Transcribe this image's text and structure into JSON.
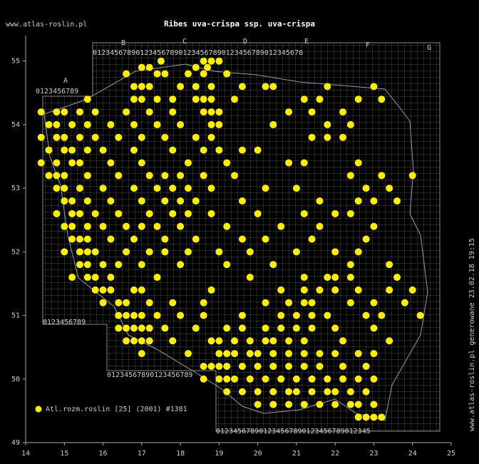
{
  "chart_data": {
    "type": "scatter",
    "title": "Ribes uva-crispa ssp. uva-crispa",
    "site": "www.atlas-roslin.pl",
    "side_note": "www.atlas-roslin.pl generowane 23.02.18 19:15",
    "legend": "Atl.rozm.roslin [25] (2001) #1381",
    "color": "#ffee00",
    "xlim": [
      14,
      25
    ],
    "xticks": [
      14,
      15,
      16,
      17,
      18,
      19,
      20,
      21,
      22,
      23,
      24,
      25
    ],
    "ylim": [
      49,
      55.4
    ],
    "yticks": [
      49,
      50,
      51,
      52,
      53,
      54,
      55
    ],
    "column_letters": [
      "A",
      "B",
      "C",
      "D",
      "E",
      "F",
      "G"
    ],
    "top_digits": "0123456789012345678901234567890123456789012345678",
    "a_digits": "0123456789",
    "left_bottom_digits": "0123456789",
    "mid_bottom_digits": "01234567890123456789",
    "bottom_digits": "012345678901234567890123456789012345",
    "rows": [
      {
        "lat": 55.0,
        "lon": [
          17.5,
          18.6,
          18.8,
          19.0
        ]
      },
      {
        "lat": 54.9,
        "lon": [
          17.0,
          17.2,
          18.4,
          18.7
        ]
      },
      {
        "lat": 54.8,
        "lon": [
          16.6,
          17.4,
          17.6,
          18.2,
          18.6,
          19.2
        ]
      },
      {
        "lat": 54.6,
        "lon": [
          16.8,
          17.0,
          17.2,
          18.0,
          18.4,
          18.8,
          19.6,
          20.2,
          20.4,
          21.8,
          23.0
        ]
      },
      {
        "lat": 54.4,
        "lon": [
          15.6,
          16.8,
          17.0,
          17.4,
          17.8,
          18.4,
          18.6,
          18.8,
          19.4,
          21.2,
          21.6,
          22.6,
          23.2
        ]
      },
      {
        "lat": 54.2,
        "lon": [
          14.4,
          14.8,
          15.0,
          15.4,
          15.8,
          16.6,
          17.2,
          17.8,
          18.6,
          18.8,
          19.0,
          20.8,
          21.4,
          22.2
        ]
      },
      {
        "lat": 54.0,
        "lon": [
          14.6,
          14.8,
          15.2,
          15.6,
          16.2,
          16.8,
          17.4,
          18.0,
          18.8,
          19.0,
          20.4,
          21.8,
          22.4
        ]
      },
      {
        "lat": 53.8,
        "lon": [
          14.4,
          14.8,
          15.0,
          15.4,
          15.8,
          16.4,
          17.0,
          17.6,
          18.4,
          18.8,
          21.4,
          21.8,
          22.2
        ]
      },
      {
        "lat": 53.6,
        "lon": [
          14.6,
          15.0,
          15.2,
          15.6,
          16.0,
          16.8,
          17.8,
          18.6,
          19.0,
          19.6,
          20.0
        ]
      },
      {
        "lat": 53.4,
        "lon": [
          14.4,
          14.8,
          15.2,
          15.4,
          16.2,
          17.0,
          18.2,
          19.2,
          20.8,
          21.2,
          22.6
        ]
      },
      {
        "lat": 53.2,
        "lon": [
          14.6,
          14.8,
          15.0,
          15.6,
          16.4,
          17.2,
          17.6,
          18.0,
          18.6,
          19.4,
          22.4,
          23.2,
          24.0
        ]
      },
      {
        "lat": 53.0,
        "lon": [
          14.8,
          15.0,
          15.4,
          16.0,
          16.8,
          17.4,
          17.8,
          18.2,
          18.8,
          20.2,
          21.0,
          22.8,
          23.4
        ]
      },
      {
        "lat": 52.8,
        "lon": [
          15.0,
          15.2,
          15.6,
          16.2,
          17.0,
          17.6,
          18.0,
          18.4,
          19.6,
          21.6,
          22.6,
          23.0,
          23.6
        ]
      },
      {
        "lat": 52.6,
        "lon": [
          14.8,
          15.2,
          15.4,
          15.8,
          16.4,
          17.2,
          17.8,
          18.2,
          18.8,
          20.0,
          21.2,
          22.0,
          22.4
        ]
      },
      {
        "lat": 52.4,
        "lon": [
          15.0,
          15.2,
          15.6,
          16.0,
          16.6,
          17.0,
          17.4,
          18.0,
          19.2,
          20.6,
          21.6,
          23.0
        ]
      },
      {
        "lat": 52.2,
        "lon": [
          15.2,
          15.4,
          15.6,
          16.2,
          16.8,
          17.6,
          18.4,
          19.6,
          20.2,
          21.4,
          22.8
        ]
      },
      {
        "lat": 52.0,
        "lon": [
          15.0,
          15.4,
          15.6,
          15.8,
          16.6,
          17.2,
          17.6,
          18.2,
          19.0,
          19.8,
          21.0,
          22.0,
          22.6
        ]
      },
      {
        "lat": 51.8,
        "lon": [
          15.4,
          15.6,
          16.0,
          16.4,
          17.0,
          18.0,
          19.2,
          20.4,
          22.4,
          23.4
        ]
      },
      {
        "lat": 51.6,
        "lon": [
          15.2,
          15.6,
          15.8,
          16.2,
          17.4,
          19.8,
          21.2,
          21.8,
          22.0,
          22.4,
          23.6
        ]
      },
      {
        "lat": 51.4,
        "lon": [
          15.8,
          16.0,
          16.2,
          16.8,
          17.0,
          18.8,
          20.6,
          21.2,
          21.6,
          22.0,
          22.6,
          23.4,
          24.0
        ]
      },
      {
        "lat": 51.2,
        "lon": [
          16.0,
          16.4,
          16.6,
          17.2,
          17.8,
          18.6,
          20.2,
          20.8,
          21.2,
          21.4,
          22.4,
          23.0,
          23.8
        ]
      },
      {
        "lat": 51.0,
        "lon": [
          16.4,
          16.6,
          16.8,
          17.0,
          17.4,
          18.0,
          18.6,
          19.6,
          20.6,
          21.0,
          21.4,
          21.8,
          22.8,
          23.2,
          24.2
        ]
      },
      {
        "lat": 50.8,
        "lon": [
          16.4,
          16.6,
          16.8,
          17.0,
          17.2,
          17.6,
          18.4,
          19.2,
          19.6,
          20.2,
          20.6,
          21.0,
          21.4,
          22.0,
          23.0
        ]
      },
      {
        "lat": 50.6,
        "lon": [
          16.6,
          16.8,
          17.0,
          17.2,
          17.8,
          18.8,
          19.0,
          19.4,
          19.8,
          20.2,
          20.4,
          20.8,
          21.2,
          22.2,
          23.4
        ]
      },
      {
        "lat": 50.4,
        "lon": [
          17.0,
          18.2,
          19.0,
          19.2,
          19.4,
          19.8,
          20.0,
          20.4,
          20.8,
          21.2,
          21.6,
          22.0,
          22.6,
          23.0
        ]
      },
      {
        "lat": 50.2,
        "lon": [
          18.6,
          18.8,
          19.0,
          19.2,
          19.6,
          20.0,
          20.4,
          20.8,
          21.2,
          21.6,
          22.2,
          22.8
        ]
      },
      {
        "lat": 50.0,
        "lon": [
          18.6,
          19.0,
          19.2,
          19.4,
          19.8,
          20.2,
          20.6,
          21.0,
          21.4,
          21.8,
          22.2,
          22.6,
          23.0
        ]
      },
      {
        "lat": 49.8,
        "lon": [
          19.2,
          19.6,
          20.0,
          20.4,
          20.8,
          21.0,
          21.4,
          21.8,
          22.0,
          22.4,
          22.8
        ]
      },
      {
        "lat": 49.6,
        "lon": [
          20.0,
          20.4,
          20.8,
          21.2,
          21.6,
          22.0,
          22.4,
          22.6,
          23.0
        ]
      },
      {
        "lat": 49.4,
        "lon": [
          22.6,
          22.8,
          23.0,
          23.2
        ]
      }
    ]
  }
}
